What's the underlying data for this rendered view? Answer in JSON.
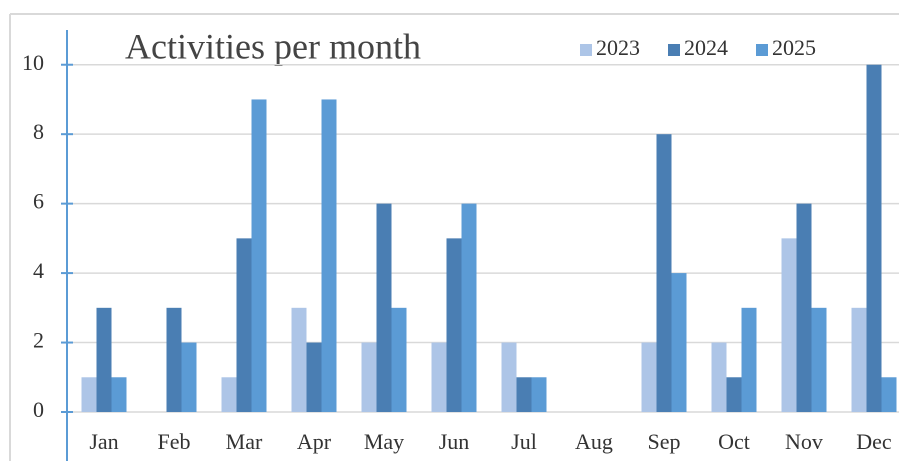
{
  "chart_data": {
    "type": "bar",
    "title": "Activities per month",
    "categories": [
      "Jan",
      "Feb",
      "Mar",
      "Apr",
      "May",
      "Jun",
      "Jul",
      "Aug",
      "Sep",
      "Oct",
      "Nov",
      "Dec"
    ],
    "series": [
      {
        "name": "2023",
        "color": "#adc5e7",
        "values": [
          1,
          0,
          1,
          3,
          2,
          2,
          2,
          0,
          2,
          2,
          5,
          3
        ]
      },
      {
        "name": "2024",
        "color": "#4a7eb3",
        "values": [
          3,
          3,
          5,
          2,
          6,
          5,
          1,
          0,
          8,
          1,
          6,
          10
        ]
      },
      {
        "name": "2025",
        "color": "#5b9bd5",
        "values": [
          1,
          2,
          9,
          9,
          3,
          6,
          1,
          0,
          4,
          3,
          3,
          1
        ]
      }
    ],
    "ylim": [
      0,
      11
    ],
    "yticks": [
      0,
      2,
      4,
      6,
      8,
      10
    ],
    "grid": true,
    "legend": "top-right"
  }
}
